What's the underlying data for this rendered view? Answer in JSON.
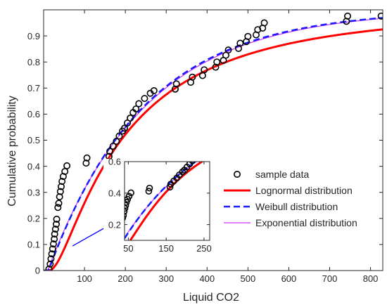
{
  "chart_data": {
    "type": "scatter",
    "xlabel": "Liquid CO2",
    "ylabel": "Cumulative probability",
    "xlim": [
      0,
      830
    ],
    "ylim": [
      0,
      1
    ],
    "xticks": [
      100,
      200,
      300,
      400,
      500,
      600,
      700,
      800
    ],
    "yticks": [
      0,
      0.1,
      0.2,
      0.3,
      0.4,
      0.5,
      0.6,
      0.7,
      0.8,
      0.9
    ],
    "grid": false,
    "legend_position": "bottom-right",
    "colors": {
      "sample": "#000000",
      "lognormal": "#ff0000",
      "weibull": "#1a1aff",
      "exponential": "#cc33ff",
      "arrow": "#0000ff"
    },
    "legend": [
      {
        "key": "sample",
        "label": "sample data"
      },
      {
        "key": "lognormal",
        "label": "Lognormal distribution"
      },
      {
        "key": "weibull",
        "label": "Weibull distribution"
      },
      {
        "key": "exponential",
        "label": "Exponential distribution"
      }
    ],
    "series": [
      {
        "name": "sample data",
        "key": "sample",
        "points": [
          [
            13,
            0.006
          ],
          [
            16,
            0.025
          ],
          [
            18,
            0.045
          ],
          [
            20,
            0.064
          ],
          [
            22,
            0.083
          ],
          [
            24,
            0.102
          ],
          [
            26,
            0.121
          ],
          [
            27,
            0.14
          ],
          [
            29,
            0.159
          ],
          [
            31,
            0.178
          ],
          [
            32,
            0.197
          ],
          [
            35,
            0.242
          ],
          [
            37,
            0.258
          ],
          [
            39,
            0.283
          ],
          [
            41,
            0.303
          ],
          [
            43,
            0.322
          ],
          [
            45,
            0.342
          ],
          [
            48,
            0.361
          ],
          [
            52,
            0.38
          ],
          [
            57,
            0.402
          ],
          [
            104,
            0.412
          ],
          [
            106,
            0.432
          ],
          [
            160,
            0.438
          ],
          [
            162,
            0.457
          ],
          [
            170,
            0.477
          ],
          [
            178,
            0.496
          ],
          [
            185,
            0.516
          ],
          [
            193,
            0.535
          ],
          [
            198,
            0.546
          ],
          [
            205,
            0.566
          ],
          [
            212,
            0.585
          ],
          [
            219,
            0.606
          ],
          [
            226,
            0.62
          ],
          [
            233,
            0.64
          ],
          [
            247,
            0.66
          ],
          [
            261,
            0.68
          ],
          [
            270,
            0.69
          ],
          [
            322,
            0.696
          ],
          [
            325,
            0.716
          ],
          [
            360,
            0.722
          ],
          [
            364,
            0.742
          ],
          [
            389,
            0.748
          ],
          [
            393,
            0.77
          ],
          [
            421,
            0.78
          ],
          [
            424,
            0.8
          ],
          [
            440,
            0.806
          ],
          [
            446,
            0.826
          ],
          [
            452,
            0.846
          ],
          [
            477,
            0.852
          ],
          [
            481,
            0.872
          ],
          [
            496,
            0.878
          ],
          [
            500,
            0.898
          ],
          [
            520,
            0.904
          ],
          [
            524,
            0.924
          ],
          [
            536,
            0.93
          ],
          [
            540,
            0.95
          ],
          [
            741,
            0.956
          ],
          [
            744,
            0.976
          ],
          [
            826,
            0.976
          ]
        ]
      },
      {
        "name": "Lognormal distribution",
        "key": "lognormal",
        "model": "lognormal",
        "params": {
          "mu": 5.2,
          "sigma": 1.05,
          "shift": 8
        }
      },
      {
        "name": "Weibull distribution",
        "key": "weibull",
        "model": "weibull",
        "params": {
          "lambda": 235,
          "k": 1.0,
          "shift": 12
        }
      },
      {
        "name": "Exponential distribution",
        "key": "exponential",
        "model": "exponential",
        "params": {
          "mean": 240,
          "shift": 10
        }
      }
    ],
    "inset": {
      "xlim": [
        40,
        265
      ],
      "ylim": [
        0.1,
        0.6
      ],
      "xticks": [
        50,
        150,
        250
      ],
      "yticks": [
        0.2,
        0.4,
        0.6
      ],
      "ytick_labels": [
        "0.2",
        "0.4",
        "0.6"
      ]
    }
  }
}
